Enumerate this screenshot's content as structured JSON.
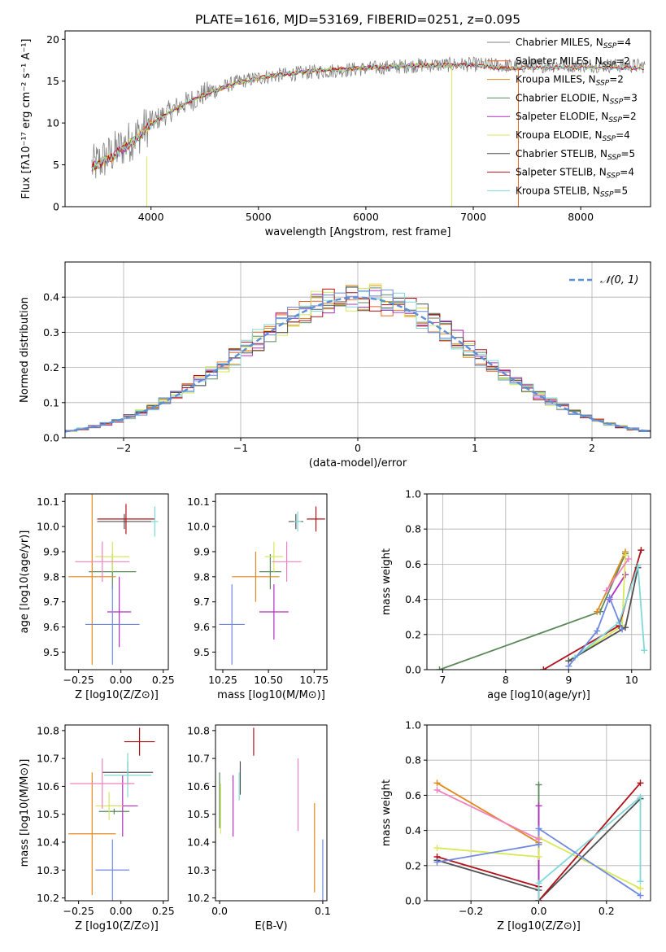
{
  "figure_title": "PLATE=1616, MJD=53169, FIBERID=0251, z=0.095",
  "legend_labels": {
    "spectrum": [
      "Chabrier MILES, N_SSP=4",
      "Salpeter MILES, N_SSP=2",
      "Kroupa MILES, N_SSP=2",
      "Chabrier ELODIE, N_SSP=3",
      "Salpeter ELODIE, N_SSP=2",
      "Kroupa ELODIE, N_SSP=4",
      "Chabrier STELIB, N_SSP=5",
      "Salpeter STELIB, N_SSP=4",
      "Kroupa STELIB, N_SSP=5"
    ],
    "residual": "𝒩(0, 1)"
  },
  "colors": {
    "model_colors": [
      "#808080",
      "#e8672a",
      "#e08a1c",
      "#5a8a5a",
      "#b030c0",
      "#d8e858",
      "#505050",
      "#b01018",
      "#80d8d8"
    ],
    "scatter_colors": [
      "#5a8a5a",
      "#e08a1c",
      "#b030c0",
      "#d8e858",
      "#505050",
      "#b01018",
      "#80d8d8",
      "#6f89e0",
      "#f080c0"
    ],
    "gaussian": "#5b8fd6",
    "grid": "#b0b0b0"
  },
  "chart_data": [
    {
      "type": "line",
      "title": "PLATE=1616, MJD=53169, FIBERID=0251, z=0.095",
      "xlabel": "wavelength [Angstrom, rest frame]",
      "ylabel": "Flux [fλ10⁻¹⁷ erg cm⁻² s⁻¹ A⁻¹]",
      "xlim": [
        3200,
        8650
      ],
      "ylim": [
        0,
        21
      ],
      "xticks": [
        4000,
        5000,
        6000,
        7000,
        8000
      ],
      "yticks": [
        0,
        5,
        10,
        15,
        20
      ],
      "grid": false,
      "legend": "right",
      "series": [
        {
          "name": "Chabrier MILES, N_SSP=4",
          "x": [
            3450,
            3600,
            3800,
            4000,
            4200,
            4500,
            4800,
            5100,
            5500,
            6000,
            6500,
            7000,
            7300,
            7500
          ],
          "y": [
            4.8,
            5.6,
            7.5,
            9.8,
            11.5,
            13.4,
            14.8,
            15.6,
            16.2,
            16.6,
            16.9,
            16.9,
            16.5,
            16.6
          ]
        },
        {
          "name": "Chabrier STELIB, N_SSP=5",
          "x": [
            3450,
            3600,
            3800,
            4000,
            4200,
            4500,
            4800,
            5100,
            5500,
            6000,
            6500,
            7000,
            7400,
            7800,
            8200,
            8600
          ],
          "y": [
            4.8,
            6.0,
            7.8,
            10.0,
            11.6,
            13.5,
            14.9,
            15.6,
            16.1,
            16.5,
            16.9,
            17.0,
            16.8,
            16.9,
            16.9,
            16.8
          ]
        }
      ]
    },
    {
      "type": "bar",
      "xlabel": "(data-model)/error",
      "ylabel": "Normed distribution",
      "xlim": [
        -2.5,
        2.5
      ],
      "ylim": [
        0,
        0.5
      ],
      "xticks": [
        -2,
        -1,
        0,
        1,
        2
      ],
      "yticks": [
        0.0,
        0.1,
        0.2,
        0.3,
        0.4
      ],
      "grid": true,
      "legend": "top-right",
      "bin_width": 0.1,
      "series": [
        {
          "name": "𝒩(0, 1)",
          "mean": 0,
          "sigma": 1
        }
      ]
    },
    {
      "type": "scatter",
      "xlabel": "Z [log10(Z/Z⊙)]",
      "ylabel": "age [log10(age/yr)]",
      "xlim": [
        -0.33,
        0.28
      ],
      "ylim": [
        9.43,
        10.13
      ],
      "xticks": [
        -0.25,
        0.0,
        0.25
      ],
      "yticks": [
        9.5,
        9.6,
        9.7,
        9.8,
        9.9,
        10.0,
        10.1
      ],
      "points": [
        {
          "x": -0.05,
          "xerr": 0.14,
          "y": 9.82,
          "yerr": 0.07
        },
        {
          "x": -0.17,
          "xerr": 0.14,
          "y": 9.8,
          "yerr": 0.35
        },
        {
          "x": -0.01,
          "xerr": 0.07,
          "y": 9.66,
          "yerr": 0.14
        },
        {
          "x": -0.05,
          "xerr": 0.1,
          "y": 9.88,
          "yerr": 0.06
        },
        {
          "x": 0.02,
          "xerr": 0.16,
          "y": 10.02,
          "yerr": 0.03
        },
        {
          "x": 0.03,
          "xerr": 0.17,
          "y": 10.03,
          "yerr": 0.06
        },
        {
          "x": 0.2,
          "xerr": 0.02,
          "y": 10.02,
          "yerr": 0.06
        },
        {
          "x": -0.05,
          "xerr": 0.16,
          "y": 9.61,
          "yerr": 0.16
        },
        {
          "x": -0.11,
          "xerr": 0.16,
          "y": 9.86,
          "yerr": 0.08
        }
      ]
    },
    {
      "type": "scatter",
      "xlabel": "mass [log10(M/M⊙)]",
      "ylabel": "",
      "xlim": [
        10.21,
        10.82
      ],
      "ylim": [
        9.43,
        10.13
      ],
      "xticks": [
        10.25,
        10.5,
        10.75
      ],
      "yticks": [
        9.5,
        9.6,
        9.7,
        9.8,
        9.9,
        10.0,
        10.1
      ],
      "points": [
        {
          "x": 10.51,
          "xerr": 0.06,
          "y": 9.82,
          "yerr": 0.07
        },
        {
          "x": 10.43,
          "xerr": 0.13,
          "y": 9.8,
          "yerr": 0.1
        },
        {
          "x": 10.53,
          "xerr": 0.08,
          "y": 9.66,
          "yerr": 0.11
        },
        {
          "x": 10.53,
          "xerr": 0.05,
          "y": 9.88,
          "yerr": 0.06
        },
        {
          "x": 10.65,
          "xerr": 0.04,
          "y": 10.02,
          "yerr": 0.03
        },
        {
          "x": 10.76,
          "xerr": 0.05,
          "y": 10.03,
          "yerr": 0.05
        },
        {
          "x": 10.66,
          "xerr": 0.02,
          "y": 10.02,
          "yerr": 0.04
        },
        {
          "x": 10.3,
          "xerr": 0.07,
          "y": 9.61,
          "yerr": 0.16
        },
        {
          "x": 10.6,
          "xerr": 0.08,
          "y": 9.86,
          "yerr": 0.08
        }
      ]
    },
    {
      "type": "line",
      "xlabel": "age [log10(age/yr)]",
      "ylabel": "mass weight",
      "xlim": [
        6.75,
        10.3
      ],
      "ylim": [
        0,
        1.0
      ],
      "xticks": [
        7,
        8,
        9,
        10
      ],
      "yticks": [
        0.0,
        0.2,
        0.4,
        0.6,
        0.8,
        1.0
      ],
      "series": [
        {
          "x": [
            6.95,
            9.5,
            9.9
          ],
          "y": [
            0.0,
            0.33,
            0.66
          ]
        },
        {
          "x": [
            9.45,
            9.9
          ],
          "y": [
            0.33,
            0.67
          ]
        },
        {
          "x": [
            9.65,
            9.9
          ],
          "y": [
            0.4,
            0.54
          ]
        },
        {
          "x": [
            9.0,
            9.85,
            9.9
          ],
          "y": [
            0.05,
            0.25,
            0.65
          ]
        },
        {
          "x": [
            9.0,
            9.9,
            10.1
          ],
          "y": [
            0.05,
            0.24,
            0.58
          ]
        },
        {
          "x": [
            8.6,
            9.8,
            10.15
          ],
          "y": [
            0.0,
            0.25,
            0.68
          ]
        },
        {
          "x": [
            9.1,
            9.8,
            10.1,
            10.2
          ],
          "y": [
            0.07,
            0.27,
            0.59,
            0.11
          ]
        },
        {
          "x": [
            9.0,
            9.45,
            9.65,
            9.85
          ],
          "y": [
            0.02,
            0.22,
            0.41,
            0.23
          ]
        },
        {
          "x": [
            9.6,
            9.95
          ],
          "y": [
            0.45,
            0.63
          ]
        }
      ]
    },
    {
      "type": "scatter",
      "xlabel": "Z [log10(Z/Z⊙)]",
      "ylabel": "mass [log10(M/M⊙)]",
      "xlim": [
        -0.33,
        0.28
      ],
      "ylim": [
        10.19,
        10.82
      ],
      "xticks": [
        -0.25,
        0.0,
        0.25
      ],
      "yticks": [
        10.2,
        10.3,
        10.4,
        10.5,
        10.6,
        10.7,
        10.8
      ],
      "points": [
        {
          "x": -0.04,
          "xerr": 0.09,
          "y": 10.51,
          "yerr": 0.01
        },
        {
          "x": -0.17,
          "xerr": 0.14,
          "y": 10.43,
          "yerr": 0.22
        },
        {
          "x": 0.01,
          "xerr": 0.09,
          "y": 10.53,
          "yerr": 0.11
        },
        {
          "x": -0.07,
          "xerr": 0.08,
          "y": 10.53,
          "yerr": 0.05
        },
        {
          "x": 0.04,
          "xerr": 0.15,
          "y": 10.65,
          "yerr": 0.04
        },
        {
          "x": 0.11,
          "xerr": 0.09,
          "y": 10.76,
          "yerr": 0.05
        },
        {
          "x": 0.04,
          "xerr": 0.14,
          "y": 10.64,
          "yerr": 0.08
        },
        {
          "x": -0.05,
          "xerr": 0.1,
          "y": 10.3,
          "yerr": 0.11
        },
        {
          "x": -0.11,
          "xerr": 0.19,
          "y": 10.61,
          "yerr": 0.09
        }
      ]
    },
    {
      "type": "scatter",
      "xlabel": "E(B-V)",
      "ylabel": "",
      "xlim": [
        -0.004,
        0.104
      ],
      "ylim": [
        10.19,
        10.82
      ],
      "xticks": [
        0.0,
        0.1
      ],
      "yticks": [
        10.2,
        10.3,
        10.4,
        10.5,
        10.6,
        10.7,
        10.8
      ],
      "points": [
        {
          "x": 0.0,
          "y": 10.55,
          "yerr": 0.1
        },
        {
          "x": 0.092,
          "y": 10.38,
          "yerr": 0.16
        },
        {
          "x": 0.013,
          "y": 10.53,
          "yerr": 0.11
        },
        {
          "x": 0.001,
          "y": 10.52,
          "yerr": 0.09
        },
        {
          "x": 0.02,
          "y": 10.63,
          "yerr": 0.06
        },
        {
          "x": 0.033,
          "y": 10.76,
          "yerr": 0.05
        },
        {
          "x": 0.019,
          "y": 10.6,
          "yerr": 0.05
        },
        {
          "x": 0.1,
          "y": 10.3,
          "yerr": 0.11
        },
        {
          "x": 0.076,
          "y": 10.57,
          "yerr": 0.13
        }
      ]
    },
    {
      "type": "line",
      "xlabel": "Z [log10(Z/Z⊙)]",
      "ylabel": "mass weight",
      "xlim": [
        -0.33,
        0.33
      ],
      "ylim": [
        0,
        1.0
      ],
      "xticks": [
        -0.2,
        0.0,
        0.2
      ],
      "yticks": [
        0.0,
        0.2,
        0.4,
        0.6,
        0.8,
        1.0
      ],
      "series": [
        {
          "x": [
            0.0,
            0.0
          ],
          "y": [
            0.0,
            0.66
          ]
        },
        {
          "x": [
            -0.3,
            0.0
          ],
          "y": [
            0.67,
            0.33
          ]
        },
        {
          "x": [
            0.0,
            0.0
          ],
          "y": [
            0.0,
            0.54
          ]
        },
        {
          "x": [
            -0.3,
            0.0,
            0.0,
            0.3
          ],
          "y": [
            0.3,
            0.25,
            0.36,
            0.07
          ]
        },
        {
          "x": [
            -0.3,
            0.0,
            0.0,
            0.3
          ],
          "y": [
            0.23,
            0.06,
            0.0,
            0.58
          ]
        },
        {
          "x": [
            -0.3,
            0.0,
            0.0,
            0.3
          ],
          "y": [
            0.25,
            0.08,
            0.0,
            0.67
          ]
        },
        {
          "x": [
            0.0,
            0.0,
            0.3,
            0.3
          ],
          "y": [
            0.0,
            0.1,
            0.59,
            0.11
          ]
        },
        {
          "x": [
            -0.3,
            0.0,
            0.0,
            0.3
          ],
          "y": [
            0.22,
            0.32,
            0.41,
            0.03
          ]
        },
        {
          "x": [
            -0.3,
            0.0
          ],
          "y": [
            0.63,
            0.35
          ]
        }
      ]
    }
  ]
}
